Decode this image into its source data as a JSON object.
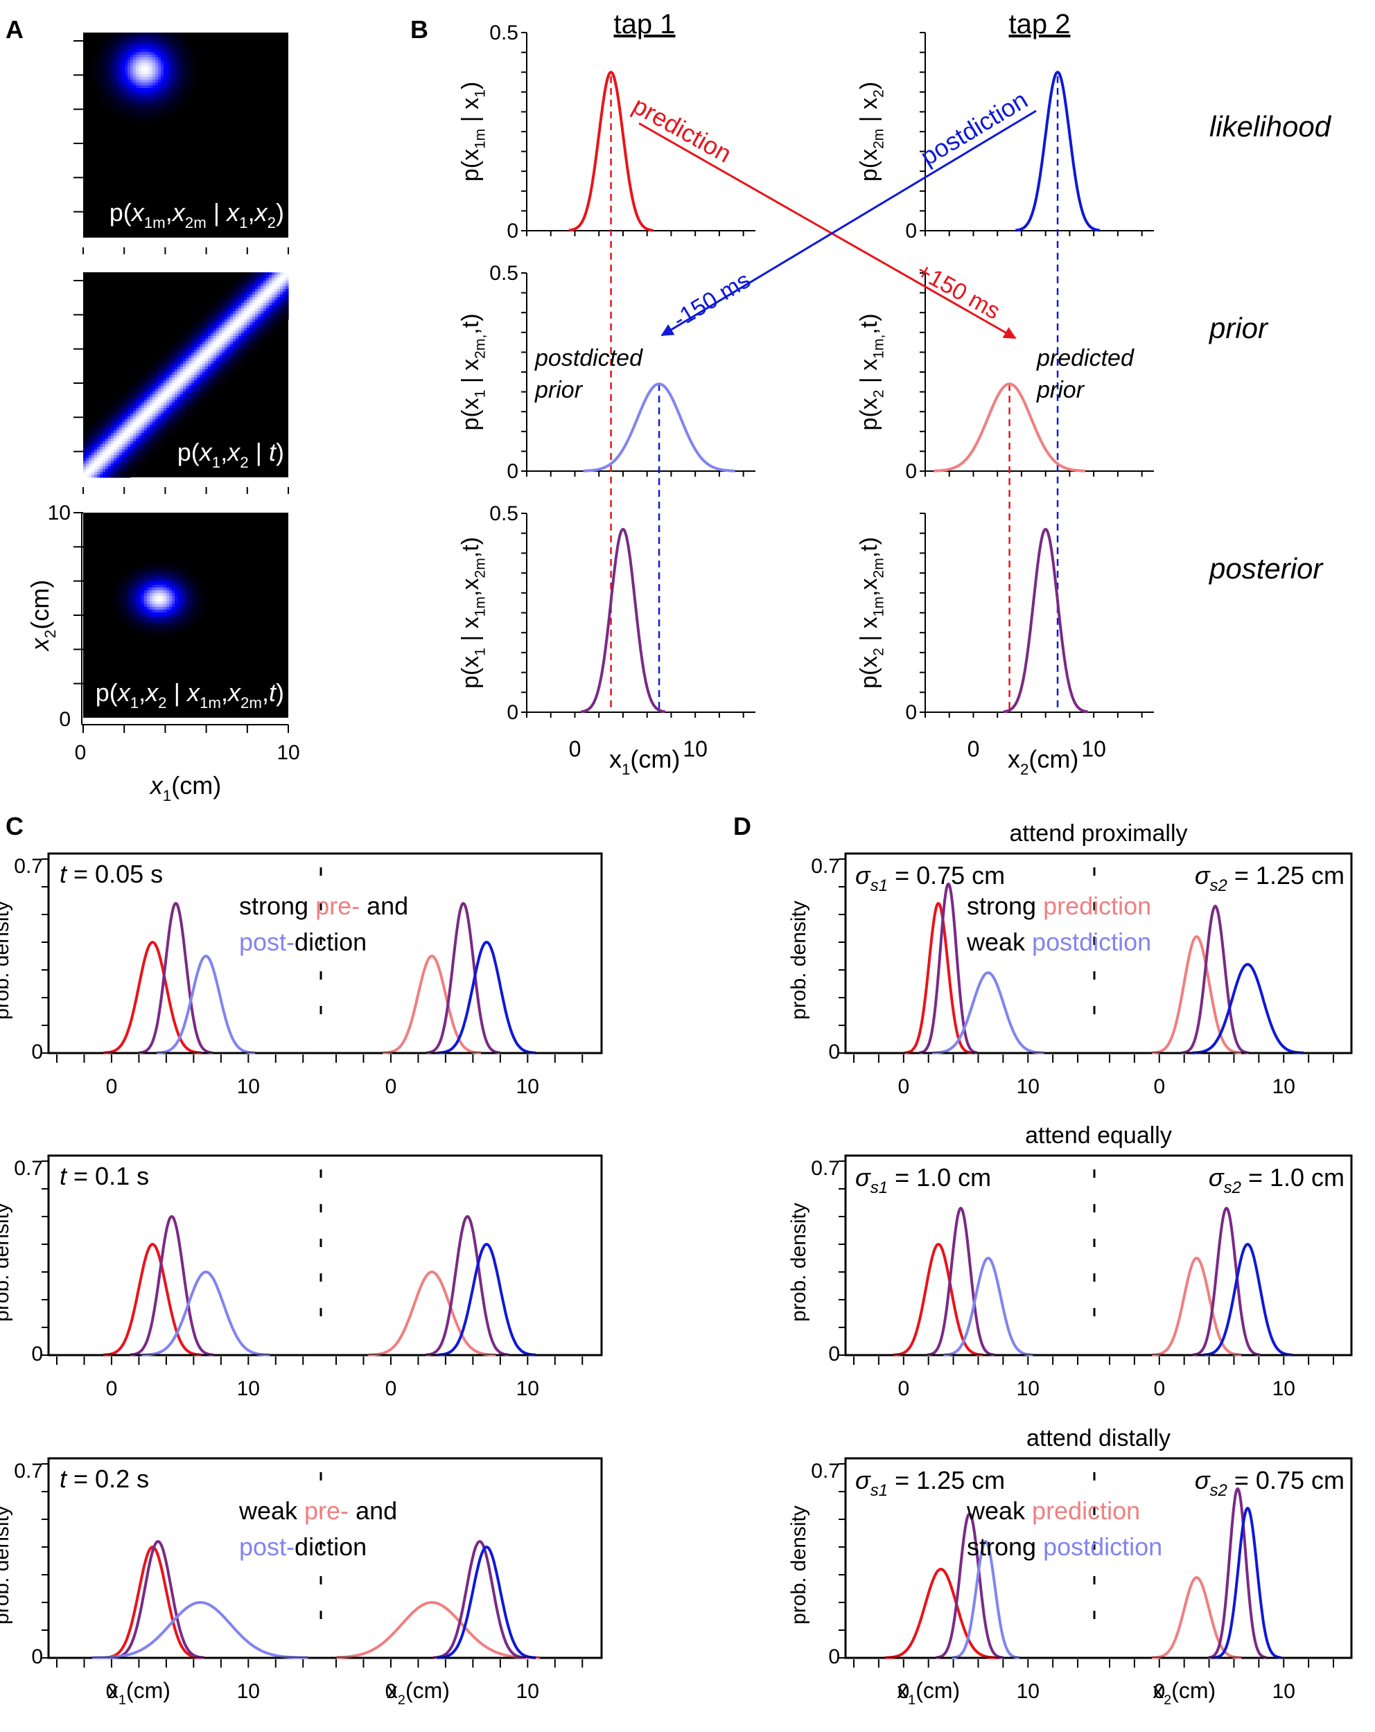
{
  "colors": {
    "red": "#e8141b",
    "blue": "#0f19d6",
    "purple": "#7a2a86",
    "lightred": "#f07f80",
    "lightblue": "#8284f0",
    "black": "#000000"
  },
  "panel_letters": {
    "A": "A",
    "B": "B",
    "C": "C",
    "D": "D"
  },
  "chart_data": [
    {
      "type": "heatmap",
      "panel": "A",
      "xlabel_var": "x",
      "xlabel_sub": "1",
      "xlabel_unit": "(cm)",
      "ylabel_var": "x",
      "ylabel_sub": "2",
      "ylabel_unit": "(cm)",
      "xlim": [
        0,
        10
      ],
      "ylim": [
        0,
        10
      ],
      "xtick_labels": [
        "0",
        "10"
      ],
      "ytick_labels": [
        "0",
        "10"
      ],
      "maps": [
        {
          "kind": "blob",
          "center": [
            3,
            8.2
          ],
          "sigma": [
            0.9,
            0.9
          ],
          "label_parts": [
            "p(",
            "x",
            "1m",
            ",",
            "x",
            "2m",
            " | ",
            "x",
            "1",
            ",",
            "x",
            "2",
            ")"
          ]
        },
        {
          "kind": "band",
          "sigma": 0.55,
          "label_parts": [
            "p(",
            "x",
            "1",
            ",",
            "x",
            "2",
            " | ",
            "t",
            ")"
          ]
        },
        {
          "kind": "blob",
          "center": [
            3.7,
            5.8
          ],
          "sigma": [
            0.8,
            0.65
          ],
          "label_parts": [
            "p(",
            "x",
            "1",
            ",",
            "x",
            "2",
            " | ",
            "x",
            "1m",
            ",",
            "x",
            "2m",
            ",",
            "t",
            ")"
          ]
        }
      ]
    },
    {
      "type": "line",
      "panel": "B",
      "columns": [
        "tap 1",
        "tap 2"
      ],
      "rows": [
        "likelihood",
        "prior",
        "posterior"
      ],
      "ylim": [
        0,
        0.5
      ],
      "ytick_labels": [
        "0",
        "0.5"
      ],
      "xlim": [
        -4,
        15
      ],
      "xtick_labels": [
        "0",
        "10"
      ],
      "xlabels": [
        [
          "x",
          "1",
          "(cm)"
        ],
        [
          "x",
          "2",
          "(cm)"
        ]
      ],
      "ylabels": [
        [
          "p(x",
          "1m",
          " | x",
          "1",
          ")"
        ],
        [
          "p(x",
          "2m",
          " | x",
          "2",
          ")"
        ],
        [
          "p(x",
          "1",
          " | x",
          "2m,",
          ",t)"
        ],
        [
          "p(x",
          "2",
          " | x",
          "1m,",
          ",t)"
        ],
        [
          "p(x",
          "1",
          " | x",
          "1m",
          ",x",
          "2m",
          ",t)"
        ],
        [
          "p(x",
          "2",
          " | x",
          "1m",
          ",x",
          "2m",
          ",t)"
        ]
      ],
      "series": [
        {
          "name": "likelihood tap 1",
          "col": 0,
          "row": 0,
          "mu": 3.0,
          "sigma": 1.0,
          "peak": 0.4,
          "color": "red"
        },
        {
          "name": "likelihood tap 2",
          "col": 1,
          "row": 0,
          "mu": 7.0,
          "sigma": 1.0,
          "peak": 0.4,
          "color": "blue"
        },
        {
          "name": "postdicted prior",
          "col": 0,
          "row": 1,
          "mu": 7.0,
          "sigma": 1.8,
          "peak": 0.22,
          "color": "lightblue"
        },
        {
          "name": "predicted prior",
          "col": 1,
          "row": 1,
          "mu": 3.0,
          "sigma": 1.8,
          "peak": 0.22,
          "color": "lightred"
        },
        {
          "name": "posterior tap 1",
          "col": 0,
          "row": 2,
          "mu": 4.0,
          "sigma": 1.0,
          "peak": 0.46,
          "color": "purple"
        },
        {
          "name": "posterior tap 2",
          "col": 1,
          "row": 2,
          "mu": 6.0,
          "sigma": 1.0,
          "peak": 0.46,
          "color": "purple"
        }
      ],
      "annotations": {
        "prediction": "prediction",
        "postdiction": "postdiction",
        "plus150": "+150 ms",
        "minus150": "-150 ms",
        "postdicted_prior": [
          "postdicted",
          "prior"
        ],
        "predicted_prior": [
          "predicted",
          "prior"
        ]
      }
    },
    {
      "type": "line",
      "panel": "C",
      "ylabel": "prob. density",
      "ylim": [
        0,
        0.7
      ],
      "ytick_labels": [
        "0.7",
        "0"
      ],
      "xlim": [
        -4,
        15
      ],
      "xtick_labels": [
        "0",
        "10"
      ],
      "xlabels": [
        [
          "x",
          "1",
          "(cm)"
        ],
        [
          "x",
          "2",
          "(cm)"
        ]
      ],
      "subplots": [
        {
          "t_label": "t = 0.05 s",
          "note_lines": [
            [
              [
                "strong ",
                "black"
              ],
              [
                "pre-",
                "lightred"
              ],
              [
                " and",
                "black"
              ]
            ],
            [
              [
                "post-",
                "lightblue"
              ],
              [
                "diction",
                "black"
              ]
            ]
          ],
          "left": [
            {
              "name": "likelihood",
              "mu": 3.0,
              "sigma": 1.0,
              "peak": 0.4,
              "color": "red"
            },
            {
              "name": "posterior",
              "mu": 4.7,
              "sigma": 0.75,
              "peak": 0.54,
              "color": "purple"
            },
            {
              "name": "postdicted prior",
              "mu": 6.9,
              "sigma": 1.0,
              "peak": 0.35,
              "color": "lightblue"
            }
          ],
          "right": [
            {
              "name": "predicted prior",
              "mu": 3.0,
              "sigma": 1.0,
              "peak": 0.35,
              "color": "lightred"
            },
            {
              "name": "posterior",
              "mu": 5.3,
              "sigma": 0.75,
              "peak": 0.54,
              "color": "purple"
            },
            {
              "name": "likelihood",
              "mu": 7.0,
              "sigma": 1.0,
              "peak": 0.4,
              "color": "blue"
            }
          ]
        },
        {
          "t_label": "t = 0.1 s",
          "note_lines": [],
          "left": [
            {
              "name": "likelihood",
              "mu": 3.0,
              "sigma": 1.0,
              "peak": 0.4,
              "color": "red"
            },
            {
              "name": "posterior",
              "mu": 4.4,
              "sigma": 0.85,
              "peak": 0.5,
              "color": "purple"
            },
            {
              "name": "postdicted prior",
              "mu": 6.9,
              "sigma": 1.3,
              "peak": 0.3,
              "color": "lightblue"
            }
          ],
          "right": [
            {
              "name": "predicted prior",
              "mu": 3.0,
              "sigma": 1.3,
              "peak": 0.3,
              "color": "lightred"
            },
            {
              "name": "posterior",
              "mu": 5.6,
              "sigma": 0.85,
              "peak": 0.5,
              "color": "purple"
            },
            {
              "name": "likelihood",
              "mu": 7.0,
              "sigma": 1.0,
              "peak": 0.4,
              "color": "blue"
            }
          ]
        },
        {
          "t_label": "t = 0.2 s",
          "note_lines": [
            [
              [
                "weak ",
                "black"
              ],
              [
                "pre-",
                "lightred"
              ],
              [
                " and",
                "black"
              ]
            ],
            [
              [
                "post-",
                "lightblue"
              ],
              [
                "diction",
                "black"
              ]
            ]
          ],
          "left": [
            {
              "name": "likelihood",
              "mu": 3.0,
              "sigma": 1.0,
              "peak": 0.4,
              "color": "red"
            },
            {
              "name": "posterior",
              "mu": 3.4,
              "sigma": 0.95,
              "peak": 0.42,
              "color": "purple"
            },
            {
              "name": "postdicted prior",
              "mu": 6.5,
              "sigma": 2.2,
              "peak": 0.2,
              "color": "lightblue"
            }
          ],
          "right": [
            {
              "name": "predicted prior",
              "mu": 3.0,
              "sigma": 2.2,
              "peak": 0.2,
              "color": "lightred"
            },
            {
              "name": "posterior",
              "mu": 6.5,
              "sigma": 0.95,
              "peak": 0.42,
              "color": "purple"
            },
            {
              "name": "likelihood",
              "mu": 7.0,
              "sigma": 1.0,
              "peak": 0.4,
              "color": "blue"
            }
          ]
        }
      ]
    },
    {
      "type": "line",
      "panel": "D",
      "ylabel": "prob. density",
      "ylim": [
        0,
        0.7
      ],
      "ytick_labels": [
        "0.7",
        "0"
      ],
      "xlim": [
        -4,
        15
      ],
      "xtick_labels": [
        "0",
        "10"
      ],
      "xlabels": [
        [
          "x",
          "1",
          "(cm)"
        ],
        [
          "x",
          "2",
          "(cm)"
        ]
      ],
      "subplots": [
        {
          "title": "attend proximally",
          "sigma_left": {
            "sym": "σ",
            "sub": "s1",
            "val": " = 0.75 cm"
          },
          "sigma_right": {
            "sym": "σ",
            "sub": "s2",
            "val": " = 1.25 cm"
          },
          "note_lines": [
            [
              [
                "strong ",
                "black"
              ],
              [
                "prediction",
                "lightred"
              ]
            ],
            [
              [
                "weak ",
                "black"
              ],
              [
                "postdiction",
                "lightblue"
              ]
            ]
          ],
          "left": [
            {
              "name": "likelihood",
              "mu": 2.8,
              "sigma": 0.75,
              "peak": 0.54,
              "color": "red"
            },
            {
              "name": "posterior",
              "mu": 3.6,
              "sigma": 0.65,
              "peak": 0.61,
              "color": "purple"
            },
            {
              "name": "postdicted prior",
              "mu": 6.8,
              "sigma": 1.25,
              "peak": 0.29,
              "color": "lightblue"
            }
          ],
          "right": [
            {
              "name": "predicted prior",
              "mu": 3.0,
              "sigma": 1.0,
              "peak": 0.42,
              "color": "lightred"
            },
            {
              "name": "posterior",
              "mu": 4.5,
              "sigma": 0.75,
              "peak": 0.53,
              "color": "purple"
            },
            {
              "name": "likelihood",
              "mu": 7.1,
              "sigma": 1.25,
              "peak": 0.32,
              "color": "blue"
            }
          ]
        },
        {
          "title": "attend equally",
          "sigma_left": {
            "sym": "σ",
            "sub": "s1",
            "val": " = 1.0 cm"
          },
          "sigma_right": {
            "sym": "σ",
            "sub": "s2",
            "val": " = 1.0 cm"
          },
          "note_lines": [],
          "left": [
            {
              "name": "likelihood",
              "mu": 2.8,
              "sigma": 1.0,
              "peak": 0.4,
              "color": "red"
            },
            {
              "name": "posterior",
              "mu": 4.6,
              "sigma": 0.75,
              "peak": 0.53,
              "color": "purple"
            },
            {
              "name": "postdicted prior",
              "mu": 6.8,
              "sigma": 1.0,
              "peak": 0.35,
              "color": "lightblue"
            }
          ],
          "right": [
            {
              "name": "predicted prior",
              "mu": 3.0,
              "sigma": 1.0,
              "peak": 0.35,
              "color": "lightred"
            },
            {
              "name": "posterior",
              "mu": 5.4,
              "sigma": 0.75,
              "peak": 0.53,
              "color": "purple"
            },
            {
              "name": "likelihood",
              "mu": 7.1,
              "sigma": 1.0,
              "peak": 0.4,
              "color": "blue"
            }
          ]
        },
        {
          "title": "attend distally",
          "sigma_left": {
            "sym": "σ",
            "sub": "s1",
            "val": " = 1.25 cm"
          },
          "sigma_right": {
            "sym": "σ",
            "sub": "s2",
            "val": " = 0.75 cm"
          },
          "note_lines": [
            [
              [
                "weak ",
                "black"
              ],
              [
                "prediction",
                "lightred"
              ]
            ],
            [
              [
                "strong ",
                "black"
              ],
              [
                "postdiction",
                "lightblue"
              ]
            ]
          ],
          "left": [
            {
              "name": "likelihood",
              "mu": 3.0,
              "sigma": 1.25,
              "peak": 0.32,
              "color": "red"
            },
            {
              "name": "posterior",
              "mu": 5.3,
              "sigma": 0.75,
              "peak": 0.52,
              "color": "purple"
            },
            {
              "name": "postdicted prior",
              "mu": 6.6,
              "sigma": 0.75,
              "peak": 0.42,
              "color": "lightblue"
            }
          ],
          "right": [
            {
              "name": "predicted prior",
              "mu": 3.0,
              "sigma": 1.0,
              "peak": 0.29,
              "color": "lightred"
            },
            {
              "name": "posterior",
              "mu": 6.3,
              "sigma": 0.65,
              "peak": 0.61,
              "color": "purple"
            },
            {
              "name": "likelihood",
              "mu": 7.1,
              "sigma": 0.75,
              "peak": 0.54,
              "color": "blue"
            }
          ]
        }
      ]
    }
  ]
}
